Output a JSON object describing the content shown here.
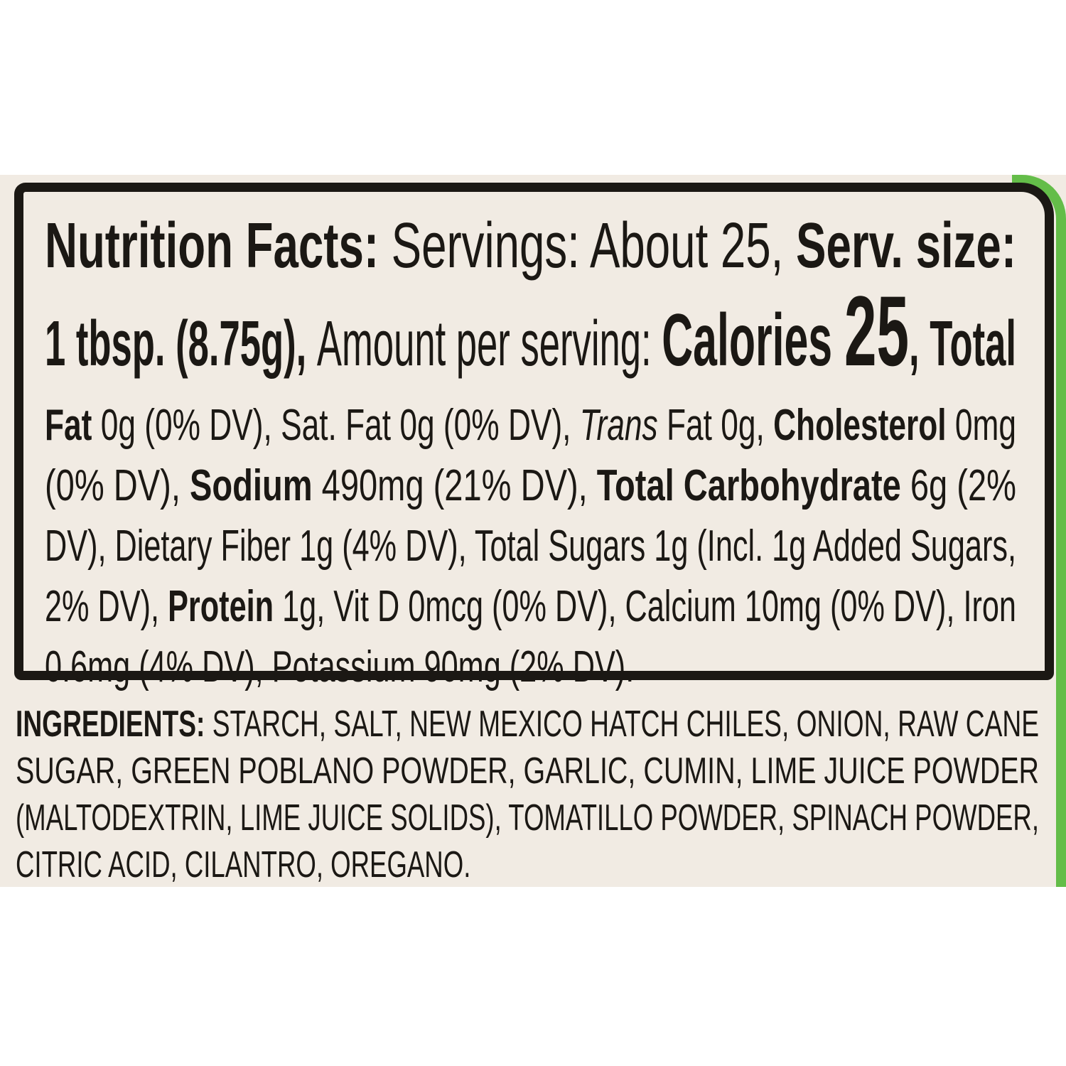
{
  "colors": {
    "page_background": "#ffffff",
    "label_background": "#f1ebe3",
    "box_border": "#1b1814",
    "accent_green": "#64bd49",
    "text": "#1b1814"
  },
  "nutrition_box": {
    "line1": {
      "title": "Nutrition Facts:",
      "servings": " Servings: About 25, ",
      "serv_size_label": "Serv. size:"
    },
    "line2": {
      "serving_size": "1 tbsp. (8.75g), ",
      "amount_per_serving": "Amount per serving: ",
      "calories_label": "Calories ",
      "calories_value": "25",
      "total_lead": ", Total"
    },
    "detail_line1": {
      "fat_label": "Fat",
      "fat_values": " 0g (0% DV), Sat. Fat 0g (0% DV), ",
      "trans_label": "Trans",
      "trans_values": " Fat 0g, ",
      "cholesterol_label": "Cholesterol",
      "cholesterol_values": " 0mg"
    },
    "detail_line2": {
      "lead": "(0% DV), ",
      "sodium_label": "Sodium",
      "sodium_values": " 490mg (21% DV), ",
      "carbohydrate_label": "Total Carbohydrate",
      "carbohydrate_values": " 6g (2%"
    },
    "detail_line3": {
      "text": "DV), Dietary Fiber 1g (4% DV), Total Sugars 1g (Incl. 1g Added Sugars,"
    },
    "detail_line4": {
      "lead": "2% DV), ",
      "protein_label": "Protein",
      "values": " 1g, Vit D 0mcg (0% DV), Calcium 10mg (0% DV), Iron"
    },
    "detail_line5": {
      "text": "0.6mg (4% DV), Potassium 90mg (2% DV)."
    }
  },
  "ingredients": {
    "label": "INGREDIENTS:",
    "line1_rest": " STARCH, SALT, NEW MEXICO HATCH CHILES, ONION, RAW CANE",
    "line2": "SUGAR, GREEN POBLANO POWDER, GARLIC, CUMIN, LIME JUICE POWDER",
    "line3": "(MALTODEXTRIN, LIME JUICE SOLIDS), TOMATILLO POWDER, SPINACH POWDER,",
    "line4": "CITRIC ACID, CILANTRO, OREGANO."
  }
}
